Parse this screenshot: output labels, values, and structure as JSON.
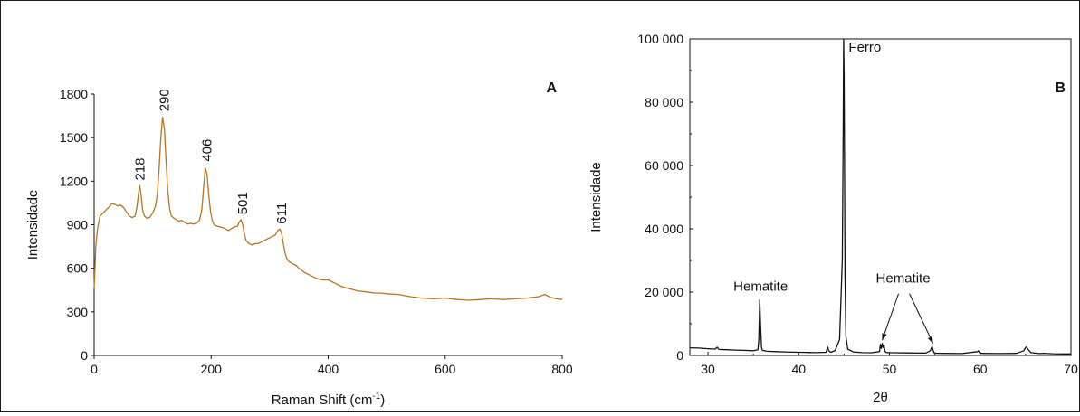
{
  "chart_data": [
    {
      "type": "line",
      "panel_label": "A",
      "xlabel": "Raman Shift (cm",
      "xlabel_sup": "-1",
      "xlabel_close": ")",
      "ylabel": "Intensidade",
      "xlim": [
        0,
        800
      ],
      "ylim": [
        0,
        1800
      ],
      "xticks": [
        0,
        200,
        400,
        600,
        800
      ],
      "yticks": [
        0,
        300,
        600,
        900,
        1200,
        1500,
        1800
      ],
      "xtick_labels": [
        "0",
        "200",
        "400",
        "600",
        "800"
      ],
      "ytick_labels": [
        "0",
        "300",
        "600",
        "900",
        "1200",
        "1500",
        "1800"
      ],
      "grid": false,
      "color": "#b8741e",
      "series": [
        {
          "x": [
            0,
            3,
            6,
            10,
            15,
            20,
            25,
            30,
            35,
            40,
            45,
            50,
            55,
            60,
            65,
            70,
            73,
            76,
            78,
            80,
            83,
            86,
            90,
            95,
            100,
            105,
            108,
            111,
            114,
            117,
            120,
            123,
            126,
            129,
            132,
            135,
            140,
            145,
            150,
            155,
            160,
            165,
            170,
            175,
            180,
            184,
            187,
            190,
            193,
            196,
            199,
            202,
            205,
            210,
            215,
            220,
            225,
            230,
            235,
            240,
            245,
            248,
            251,
            254,
            257,
            260,
            265,
            270,
            275,
            280,
            285,
            290,
            295,
            300,
            305,
            310,
            314,
            317,
            320,
            323,
            326,
            329,
            332,
            335,
            340,
            345,
            350,
            360,
            370,
            380,
            390,
            400,
            410,
            420,
            430,
            440,
            450,
            460,
            470,
            480,
            490,
            500,
            520,
            540,
            560,
            580,
            600,
            620,
            640,
            660,
            680,
            700,
            720,
            740,
            760,
            770,
            780,
            790,
            800
          ],
          "y": [
            460,
            760,
            880,
            960,
            980,
            1000,
            1020,
            1045,
            1040,
            1030,
            1035,
            1020,
            990,
            960,
            950,
            960,
            1020,
            1120,
            1170,
            1110,
            1000,
            960,
            945,
            950,
            980,
            1030,
            1110,
            1280,
            1500,
            1640,
            1560,
            1330,
            1130,
            1010,
            960,
            950,
            935,
            925,
            930,
            915,
            905,
            910,
            905,
            910,
            930,
            1000,
            1150,
            1290,
            1250,
            1100,
            990,
            930,
            900,
            890,
            885,
            880,
            870,
            860,
            875,
            885,
            890,
            920,
            935,
            900,
            830,
            790,
            770,
            760,
            770,
            770,
            780,
            790,
            800,
            810,
            820,
            830,
            860,
            870,
            850,
            780,
            710,
            670,
            650,
            640,
            630,
            620,
            600,
            570,
            550,
            530,
            520,
            520,
            500,
            480,
            465,
            455,
            445,
            440,
            435,
            430,
            430,
            425,
            420,
            405,
            395,
            390,
            395,
            385,
            380,
            385,
            390,
            385,
            390,
            395,
            405,
            420,
            400,
            390,
            385
          ]
        }
      ],
      "annotations": [
        {
          "text": "218",
          "x": 78,
          "y": 1180
        },
        {
          "text": "290",
          "x": 120,
          "y": 1655
        },
        {
          "text": "406",
          "x": 193,
          "y": 1310
        },
        {
          "text": "501",
          "x": 254,
          "y": 945
        },
        {
          "text": "611",
          "x": 320,
          "y": 880
        }
      ]
    },
    {
      "type": "line",
      "panel_label": "B",
      "xlabel": "2θ",
      "ylabel": "Intensidade",
      "xlim": [
        28,
        70
      ],
      "ylim": [
        0,
        100000
      ],
      "xticks": [
        30,
        40,
        50,
        60,
        70
      ],
      "yticks": [
        0,
        20000,
        40000,
        60000,
        80000,
        100000
      ],
      "xtick_labels": [
        "30",
        "40",
        "50",
        "60",
        "70"
      ],
      "ytick_labels": [
        "0",
        "20 000",
        "40 000",
        "60 000",
        "80 000",
        "100 000"
      ],
      "grid": false,
      "color": "#111111",
      "series": [
        {
          "x": [
            28,
            29,
            30,
            30.8,
            31,
            31.2,
            32,
            33,
            34,
            35,
            35.5,
            35.6,
            35.7,
            35.8,
            35.9,
            36.0,
            36.5,
            37.5,
            38.5,
            40,
            41,
            42,
            43,
            43.1,
            43.2,
            43.3,
            43.5,
            44,
            44.5,
            44.8,
            44.9,
            44.95,
            45.0,
            45.05,
            45.1,
            45.2,
            45.4,
            46,
            47,
            48,
            48.9,
            49.0,
            49.1,
            49.2,
            49.3,
            49.4,
            49.5,
            49.6,
            49.8,
            50.5,
            52,
            54,
            54.5,
            54.7,
            54.8,
            54.9,
            55.2,
            56,
            58,
            59.7,
            59.8,
            59.9,
            60.2,
            62,
            64,
            64.8,
            65.0,
            65.1,
            65.3,
            65.6,
            66.5,
            67,
            68,
            69,
            70
          ],
          "y": [
            2400,
            2300,
            2100,
            2000,
            2600,
            1900,
            1800,
            1700,
            1600,
            1500,
            1800,
            5000,
            17500,
            9000,
            2500,
            1600,
            1300,
            1200,
            1100,
            1000,
            950,
            900,
            1000,
            1800,
            2600,
            1500,
            1000,
            1500,
            5000,
            30000,
            70000,
            100000,
            88000,
            60000,
            25000,
            6000,
            2000,
            1100,
            900,
            850,
            1200,
            3500,
            2200,
            3800,
            2500,
            3200,
            1400,
            1000,
            900,
            850,
            800,
            750,
            1500,
            2800,
            1800,
            900,
            700,
            650,
            600,
            1200,
            1500,
            900,
            650,
            600,
            650,
            1500,
            2500,
            2700,
            1800,
            900,
            600,
            700,
            550,
            500,
            500
          ]
        }
      ],
      "annotations": [
        {
          "text": "Ferro",
          "x": 45.5,
          "y": 96000,
          "anchor": "start"
        },
        {
          "text": "Hematite",
          "x": 35.8,
          "y": 20500,
          "anchor": "middle"
        },
        {
          "text": "Hematite",
          "x": 51.5,
          "y": 23000,
          "anchor": "middle"
        }
      ],
      "arrows": [
        {
          "from": [
            51.0,
            19500
          ],
          "to": [
            49.2,
            4800
          ]
        },
        {
          "from": [
            52.2,
            19500
          ],
          "to": [
            54.8,
            3800
          ]
        }
      ]
    }
  ]
}
